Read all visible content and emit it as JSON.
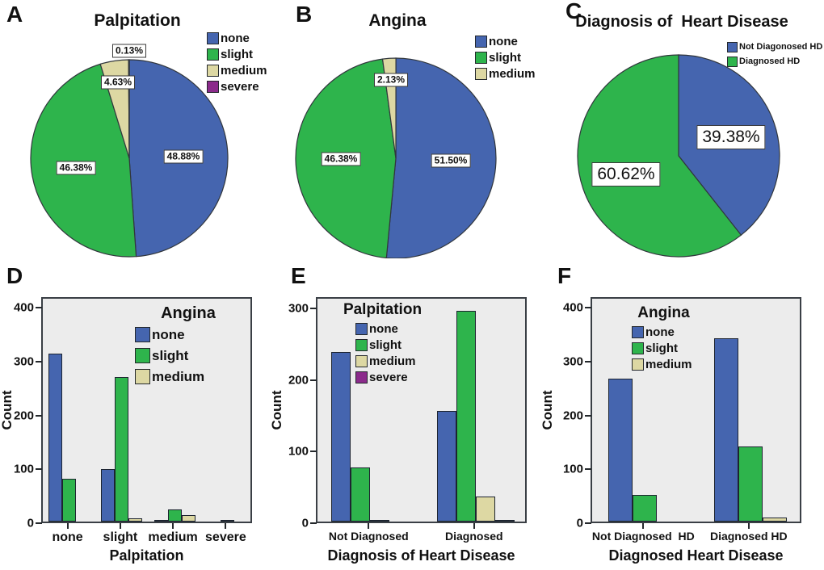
{
  "colors": {
    "blue": "#4565af",
    "green": "#2eb44c",
    "tan": "#ddd8a3",
    "purple": "#8b2b8b",
    "outline": "#31363c",
    "plot_bg": "#ececec"
  },
  "chart_data": [
    {
      "panel": "A",
      "type": "pie",
      "title": "Palpitation",
      "legend_position": "top-right",
      "slices": [
        {
          "label": "none",
          "value": 48.88,
          "color": "blue"
        },
        {
          "label": "slight",
          "value": 46.38,
          "color": "green"
        },
        {
          "label": "medium",
          "value": 4.63,
          "color": "tan"
        },
        {
          "label": "severe",
          "value": 0.13,
          "color": "purple"
        }
      ]
    },
    {
      "panel": "B",
      "type": "pie",
      "title": "Angina",
      "legend_position": "top-right",
      "slices": [
        {
          "label": "none",
          "value": 51.5,
          "color": "blue"
        },
        {
          "label": "slight",
          "value": 46.38,
          "color": "green"
        },
        {
          "label": "medium",
          "value": 2.13,
          "color": "tan"
        }
      ]
    },
    {
      "panel": "C",
      "type": "pie",
      "title": "Diagnosis of  Heart Disease",
      "legend_position": "top-right",
      "slices": [
        {
          "label": "Not Diagonosed HD",
          "value": 39.38,
          "color": "blue"
        },
        {
          "label": "Diagnosed HD",
          "value": 60.62,
          "color": "green"
        }
      ]
    },
    {
      "panel": "D",
      "type": "bar",
      "legend_title": "Angina",
      "xlabel": "Palpitation",
      "ylabel": "Count",
      "categories": [
        "none",
        "slight",
        "medium",
        "severe"
      ],
      "yticks": [
        0,
        100,
        200,
        300,
        400
      ],
      "ylim": [
        0,
        420
      ],
      "grid": false,
      "series": [
        {
          "name": "none",
          "color": "blue",
          "values": [
            312,
            98,
            3,
            0
          ]
        },
        {
          "name": "slight",
          "color": "green",
          "values": [
            79,
            268,
            23,
            1
          ]
        },
        {
          "name": "medium",
          "color": "tan",
          "values": [
            0,
            6,
            12,
            0
          ]
        }
      ]
    },
    {
      "panel": "E",
      "type": "bar",
      "legend_title": "Palpitation",
      "xlabel": "Diagnosis of Heart Disease",
      "ylabel": "Count",
      "categories": [
        "Not Diagnosed",
        "Diagnosed"
      ],
      "yticks": [
        0,
        100,
        200,
        300
      ],
      "ylim": [
        0,
        316
      ],
      "grid": false,
      "series": [
        {
          "name": "none",
          "color": "blue",
          "values": [
            237,
            155
          ]
        },
        {
          "name": "slight",
          "color": "green",
          "values": [
            76,
            295
          ]
        },
        {
          "name": "medium",
          "color": "tan",
          "values": [
            2,
            35
          ]
        },
        {
          "name": "severe",
          "color": "purple",
          "values": [
            0,
            1
          ]
        }
      ]
    },
    {
      "panel": "F",
      "type": "bar",
      "legend_title": "Angina",
      "xlabel": "Diagnosed Heart Disease",
      "ylabel": "Count",
      "categories": [
        "Not Diagnosed  HD",
        "Diagnosed HD"
      ],
      "yticks": [
        0,
        100,
        200,
        300,
        400
      ],
      "ylim": [
        0,
        420
      ],
      "grid": false,
      "series": [
        {
          "name": "none",
          "color": "blue",
          "values": [
            266,
            340
          ]
        },
        {
          "name": "slight",
          "color": "green",
          "values": [
            49,
            139
          ]
        },
        {
          "name": "medium",
          "color": "tan",
          "values": [
            0,
            8
          ]
        }
      ]
    }
  ]
}
